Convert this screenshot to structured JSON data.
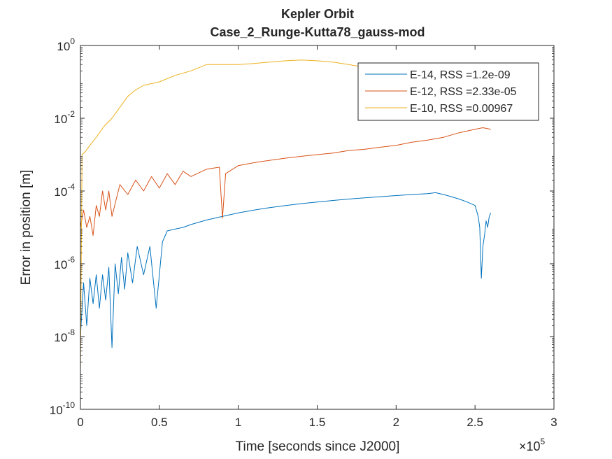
{
  "chart_data": {
    "type": "line",
    "title": "Kepler Orbit",
    "subtitle": "Case_2_Runge-Kutta78_gauss-mod",
    "xlabel": "Time [seconds since J2000]",
    "ylabel": "Error in position [m]",
    "x_multiplier": {
      "base": "×10",
      "exponent": "5"
    },
    "yscale": "log",
    "xlim": [
      0,
      300000
    ],
    "ylim": [
      1e-10,
      1
    ],
    "x_ticks": [
      {
        "value": 0,
        "label": "0"
      },
      {
        "value": 50000,
        "label": "0.5"
      },
      {
        "value": 100000,
        "label": "1"
      },
      {
        "value": 150000,
        "label": "1.5"
      },
      {
        "value": 200000,
        "label": "2"
      },
      {
        "value": 250000,
        "label": "2.5"
      },
      {
        "value": 300000,
        "label": "3"
      }
    ],
    "y_ticks": [
      {
        "value": 1e-10,
        "base": "10",
        "exp": "-10"
      },
      {
        "value": 1e-08,
        "base": "10",
        "exp": "-8"
      },
      {
        "value": 1e-06,
        "base": "10",
        "exp": "-6"
      },
      {
        "value": 0.0001,
        "base": "10",
        "exp": "-4"
      },
      {
        "value": 0.01,
        "base": "10",
        "exp": "-2"
      },
      {
        "value": 1,
        "base": "10",
        "exp": "0"
      }
    ],
    "grid": false,
    "legend_position": "top-right",
    "series": [
      {
        "name": "E-14, RSS =1.2e-09",
        "color": "#0072BD",
        "x": [
          0,
          2000,
          4000,
          6000,
          8000,
          10000,
          12000,
          14000,
          16000,
          18000,
          20000,
          22000,
          24000,
          26000,
          28000,
          30000,
          33000,
          36000,
          40000,
          44000,
          48000,
          52000,
          55000,
          60000,
          65000,
          70000,
          80000,
          90000,
          100000,
          110000,
          120000,
          130000,
          140000,
          150000,
          160000,
          170000,
          180000,
          190000,
          200000,
          210000,
          220000,
          225000,
          230000,
          235000,
          240000,
          245000,
          250000,
          252000,
          253000,
          254000,
          255000,
          256000,
          257000,
          258000,
          259000,
          260000
        ],
        "y": [
          1e-08,
          3e-07,
          2e-08,
          4e-07,
          8e-08,
          5e-07,
          6e-08,
          5e-07,
          1e-07,
          8e-07,
          5e-09,
          1e-06,
          1.5e-07,
          1.5e-06,
          2e-07,
          2e-06,
          3e-07,
          3e-06,
          5e-07,
          3e-06,
          6e-08,
          4e-06,
          8e-06,
          9e-06,
          1e-05,
          1.2e-05,
          1.6e-05,
          2e-05,
          2.5e-05,
          3e-05,
          3.5e-05,
          4e-05,
          4.5e-05,
          5e-05,
          5.5e-05,
          6e-05,
          6.5e-05,
          7e-05,
          7.5e-05,
          8e-05,
          8.5e-05,
          9e-05,
          8e-05,
          7e-05,
          6e-05,
          5e-05,
          4e-05,
          2e-05,
          1e-05,
          4e-07,
          3e-06,
          6e-06,
          1.5e-05,
          1e-05,
          2e-05,
          2.5e-05
        ]
      },
      {
        "name": "E-12, RSS =2.33e-05",
        "color": "#D95319",
        "x": [
          0,
          2000,
          4000,
          6000,
          8000,
          10000,
          12000,
          14000,
          16000,
          18000,
          20000,
          25000,
          30000,
          35000,
          40000,
          45000,
          50000,
          55000,
          60000,
          65000,
          70000,
          80000,
          88000,
          90000,
          92000,
          100000,
          110000,
          120000,
          130000,
          140000,
          150000,
          160000,
          170000,
          180000,
          190000,
          200000,
          210000,
          220000,
          230000,
          240000,
          250000,
          255000,
          260000
        ],
        "y": [
          1e-05,
          3e-05,
          1e-05,
          2e-05,
          6e-06,
          4e-05,
          2e-05,
          0.0001,
          3e-05,
          0.0001,
          2e-05,
          0.00015,
          8e-05,
          0.0002,
          0.0001,
          0.00025,
          0.00012,
          0.0003,
          0.00015,
          0.00035,
          0.00025,
          0.0004,
          0.00045,
          1.8e-05,
          0.0003,
          0.0005,
          0.0006,
          0.0007,
          0.0008,
          0.0009,
          0.001,
          0.0011,
          0.0013,
          0.0014,
          0.0016,
          0.0018,
          0.0022,
          0.0025,
          0.003,
          0.004,
          0.005,
          0.0055,
          0.005
        ]
      },
      {
        "name": "E-10, RSS =0.00967",
        "color": "#EDB120",
        "x": [
          0,
          1000,
          3000,
          6000,
          10000,
          15000,
          20000,
          25000,
          30000,
          35000,
          40000,
          50000,
          60000,
          70000,
          80000,
          90000,
          100000,
          110000,
          120000,
          130000,
          140000,
          150000,
          160000,
          170000,
          180000,
          190000,
          200000,
          210000,
          220000,
          225000,
          230000
        ],
        "y": [
          1e-09,
          0.001,
          0.0012,
          0.0018,
          0.003,
          0.006,
          0.01,
          0.02,
          0.04,
          0.06,
          0.08,
          0.1,
          0.15,
          0.2,
          0.3,
          0.3,
          0.3,
          0.32,
          0.35,
          0.38,
          0.4,
          0.38,
          0.35,
          0.3,
          0.25,
          0.2,
          0.15,
          0.1,
          0.06,
          0.04,
          0.02
        ]
      }
    ]
  }
}
